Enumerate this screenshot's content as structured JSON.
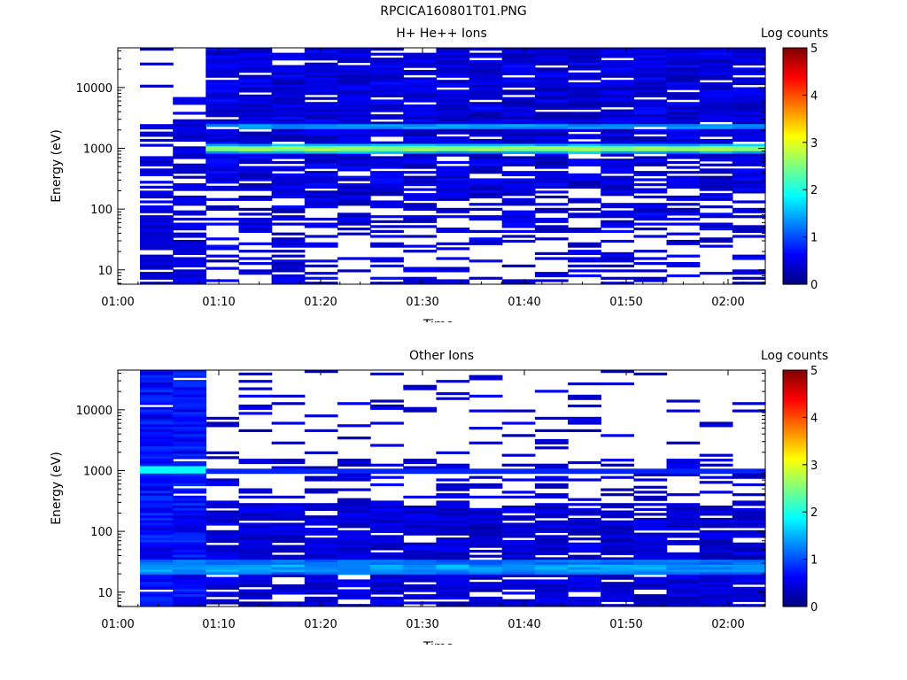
{
  "page_title": "RPCICA160801T01.PNG",
  "chart_data": [
    {
      "type": "heatmap",
      "title": "H+ He++ Ions",
      "xlabel": "Time",
      "ylabel": "Energy (eV)",
      "yscale": "log",
      "x_ticks": [
        "01:00",
        "01:10",
        "01:20",
        "01:30",
        "01:40",
        "01:50",
        "02:00"
      ],
      "y_ticks": [
        "10",
        "100",
        "1000",
        "10000"
      ],
      "ylim": [
        5.8,
        45000
      ],
      "colorbar_label": "Log counts",
      "colorbar_ticks": [
        "0",
        "1",
        "2",
        "3",
        "4",
        "5"
      ],
      "colorbar_range": [
        0,
        5
      ],
      "time_bins": 19,
      "intense_band_energy": 1000,
      "intense_band_level": 2.8,
      "data_onset_bin": 2
    },
    {
      "type": "heatmap",
      "title": "Other Ions",
      "xlabel": "Time",
      "ylabel": "Energy (eV)",
      "yscale": "log",
      "x_ticks": [
        "01:00",
        "01:10",
        "01:20",
        "01:30",
        "01:40",
        "01:50",
        "02:00"
      ],
      "y_ticks": [
        "10",
        "100",
        "1000",
        "10000"
      ],
      "ylim": [
        5.8,
        45000
      ],
      "colorbar_label": "Log counts",
      "colorbar_ticks": [
        "0",
        "1",
        "2",
        "3",
        "4",
        "5"
      ],
      "colorbar_range": [
        0,
        5
      ],
      "time_bins": 19,
      "intense_band_energy": 25,
      "intense_band_level": 1.6,
      "secondary_band_energy": 1000,
      "secondary_band_level": 0.8
    }
  ]
}
